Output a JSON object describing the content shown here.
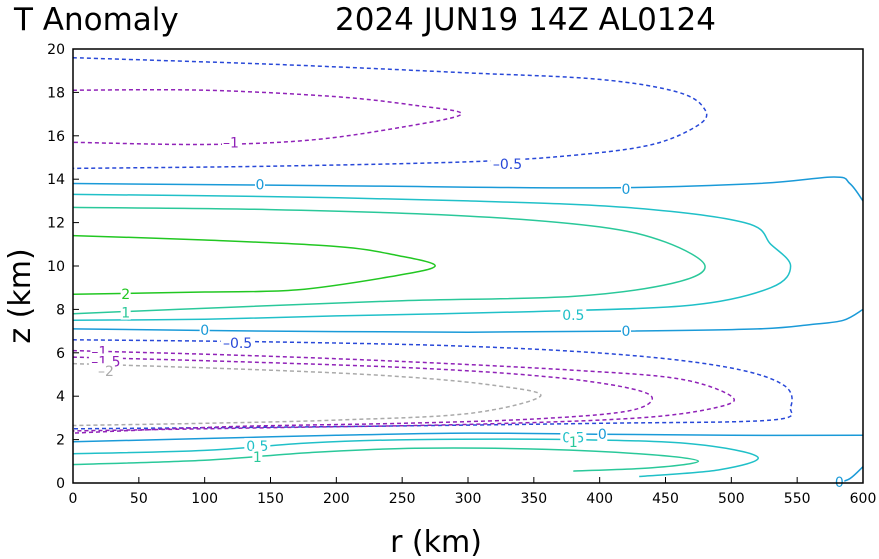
{
  "chart_data": {
    "type": "contour",
    "title": "T Anomaly",
    "subtitle": "2024  JUN19  14Z   AL0124",
    "xlabel": "r (km)",
    "ylabel": "z (km)",
    "xlim": [
      0,
      600
    ],
    "ylim": [
      0,
      20
    ],
    "xticks": [
      "0",
      "50",
      "100",
      "150",
      "200",
      "250",
      "300",
      "350",
      "400",
      "450",
      "500",
      "550",
      "600"
    ],
    "yticks": [
      "0",
      "2",
      "4",
      "6",
      "8",
      "10",
      "12",
      "14",
      "16",
      "18",
      "20"
    ],
    "grid": false,
    "colors": {
      "c2": "#22c722",
      "c1": "#2ac89a",
      "c05": "#20c0c8",
      "c0": "#1a9ad8",
      "cm05": "#2848d8",
      "cm1": "#9022b8",
      "cm15": "#aaaaaa"
    },
    "contours": [
      {
        "level": 2,
        "color": "c2",
        "dashed": false,
        "points": [
          [
            0,
            11.4
          ],
          [
            100,
            11.2
          ],
          [
            200,
            10.9
          ],
          [
            245,
            10.5
          ],
          [
            275,
            10.0
          ],
          [
            240,
            9.5
          ],
          [
            170,
            8.9
          ],
          [
            100,
            8.8
          ],
          [
            0,
            8.7
          ]
        ]
      },
      {
        "level": 1,
        "color": "c1",
        "dashed": false,
        "points": [
          [
            0,
            12.7
          ],
          [
            150,
            12.6
          ],
          [
            300,
            12.3
          ],
          [
            400,
            11.8
          ],
          [
            450,
            11.1
          ],
          [
            480,
            10.0
          ],
          [
            455,
            9.2
          ],
          [
            380,
            8.6
          ],
          [
            250,
            8.4
          ],
          [
            120,
            8.1
          ],
          [
            0,
            7.8
          ]
        ]
      },
      {
        "level": 0.5,
        "color": "c05",
        "dashed": false,
        "points": [
          [
            0,
            13.3
          ],
          [
            150,
            13.2
          ],
          [
            300,
            13.0
          ],
          [
            420,
            12.7
          ],
          [
            510,
            12.0
          ],
          [
            530,
            11.0
          ],
          [
            545,
            10.0
          ],
          [
            530,
            9.0
          ],
          [
            470,
            8.2
          ],
          [
            350,
            7.9
          ],
          [
            200,
            7.7
          ],
          [
            100,
            7.55
          ],
          [
            0,
            7.5
          ]
        ]
      },
      {
        "level": 0,
        "color": "c0",
        "dashed": false,
        "points": [
          [
            0,
            13.8
          ],
          [
            200,
            13.7
          ],
          [
            400,
            13.6
          ],
          [
            520,
            13.8
          ],
          [
            578,
            14.1
          ],
          [
            590,
            13.8
          ],
          [
            600,
            13.0
          ]
        ]
      },
      {
        "level": 0,
        "color": "c0",
        "dashed": false,
        "points": [
          [
            0,
            7.1
          ],
          [
            150,
            7.0
          ],
          [
            300,
            6.95
          ],
          [
            420,
            7.0
          ],
          [
            520,
            7.1
          ],
          [
            560,
            7.3
          ],
          [
            585,
            7.5
          ],
          [
            600,
            8.0
          ]
        ]
      },
      {
        "level": -0.5,
        "color": "cm05",
        "dashed": true,
        "points": [
          [
            0,
            19.6
          ],
          [
            150,
            19.3
          ],
          [
            300,
            18.9
          ],
          [
            400,
            18.6
          ],
          [
            460,
            18.0
          ],
          [
            480,
            17.2
          ],
          [
            475,
            16.5
          ],
          [
            440,
            15.6
          ],
          [
            380,
            15.1
          ],
          [
            300,
            14.8
          ],
          [
            150,
            14.6
          ],
          [
            0,
            14.5
          ]
        ]
      },
      {
        "level": -0.5,
        "color": "cm05",
        "dashed": true,
        "points": [
          [
            0,
            6.6
          ],
          [
            150,
            6.5
          ],
          [
            300,
            6.3
          ],
          [
            420,
            5.9
          ],
          [
            500,
            5.3
          ],
          [
            540,
            4.5
          ],
          [
            545,
            3.5
          ],
          [
            530,
            2.9
          ],
          [
            400,
            2.75
          ],
          [
            200,
            2.6
          ],
          [
            0,
            2.5
          ]
        ]
      },
      {
        "level": -1,
        "color": "cm1",
        "dashed": true,
        "points": [
          [
            0,
            18.1
          ],
          [
            100,
            18.1
          ],
          [
            200,
            17.8
          ],
          [
            260,
            17.4
          ],
          [
            295,
            17.0
          ],
          [
            250,
            16.4
          ],
          [
            180,
            15.8
          ],
          [
            100,
            15.6
          ],
          [
            0,
            15.7
          ]
        ]
      },
      {
        "level": -1,
        "color": "cm1",
        "dashed": true,
        "points": [
          [
            0,
            6.1
          ],
          [
            120,
            5.9
          ],
          [
            250,
            5.6
          ],
          [
            380,
            5.2
          ],
          [
            460,
            4.8
          ],
          [
            500,
            4.0
          ],
          [
            490,
            3.5
          ],
          [
            430,
            3.0
          ],
          [
            300,
            2.7
          ],
          [
            150,
            2.55
          ],
          [
            0,
            2.4
          ]
        ]
      },
      {
        "level": -1.5,
        "color": "cm1",
        "dashed": true,
        "points": [
          [
            0,
            5.8
          ],
          [
            120,
            5.6
          ],
          [
            260,
            5.3
          ],
          [
            360,
            4.9
          ],
          [
            420,
            4.4
          ],
          [
            440,
            3.9
          ],
          [
            420,
            3.3
          ],
          [
            350,
            2.95
          ],
          [
            250,
            2.75
          ],
          [
            120,
            2.6
          ],
          [
            0,
            2.3
          ]
        ]
      },
      {
        "level": -2,
        "color": "cm15",
        "dashed": true,
        "points": [
          [
            0,
            5.5
          ],
          [
            150,
            5.2
          ],
          [
            250,
            4.9
          ],
          [
            320,
            4.5
          ],
          [
            355,
            4.0
          ],
          [
            300,
            3.2
          ],
          [
            200,
            2.9
          ],
          [
            100,
            2.75
          ],
          [
            0,
            2.65
          ]
        ]
      },
      {
        "level": 0,
        "color": "c0",
        "dashed": false,
        "points": [
          [
            0,
            1.9
          ],
          [
            100,
            2.05
          ],
          [
            200,
            2.2
          ],
          [
            300,
            2.3
          ],
          [
            400,
            2.25
          ],
          [
            500,
            2.2
          ],
          [
            600,
            2.2
          ]
        ]
      },
      {
        "level": 0.5,
        "color": "c05",
        "dashed": false,
        "points": [
          [
            0,
            1.35
          ],
          [
            100,
            1.5
          ],
          [
            180,
            1.85
          ],
          [
            260,
            2.0
          ],
          [
            380,
            2.0
          ],
          [
            470,
            1.8
          ],
          [
            520,
            1.2
          ],
          [
            490,
            0.6
          ],
          [
            430,
            0.3
          ]
        ]
      },
      {
        "level": 1,
        "color": "c1",
        "dashed": false,
        "points": [
          [
            0,
            0.85
          ],
          [
            100,
            1.05
          ],
          [
            180,
            1.4
          ],
          [
            260,
            1.6
          ],
          [
            360,
            1.55
          ],
          [
            440,
            1.3
          ],
          [
            475,
            1.0
          ],
          [
            440,
            0.7
          ],
          [
            380,
            0.55
          ]
        ]
      },
      {
        "level": 0,
        "color": "c0",
        "dashed": false,
        "points": [
          [
            580,
            0.0
          ],
          [
            590,
            0.2
          ],
          [
            600,
            0.75
          ]
        ]
      }
    ],
    "labels": [
      {
        "text": "2",
        "r": 40,
        "z": 8.7,
        "color": "c2"
      },
      {
        "text": "1",
        "r": 40,
        "z": 7.85,
        "color": "c1"
      },
      {
        "text": "0.5",
        "r": 380,
        "z": 7.75,
        "color": "c05"
      },
      {
        "text": "0",
        "r": 142,
        "z": 13.75,
        "color": "c0"
      },
      {
        "text": "0",
        "r": 420,
        "z": 13.55,
        "color": "c0"
      },
      {
        "text": "0",
        "r": 100,
        "z": 7.05,
        "color": "c0"
      },
      {
        "text": "0",
        "r": 420,
        "z": 7.0,
        "color": "c0"
      },
      {
        "text": "–0.5",
        "r": 330,
        "z": 14.7,
        "color": "cm05"
      },
      {
        "text": "–0.5",
        "r": 125,
        "z": 6.45,
        "color": "cm05"
      },
      {
        "text": "–1",
        "r": 120,
        "z": 15.7,
        "color": "cm1"
      },
      {
        "text": "–1",
        "r": 20,
        "z": 6.05,
        "color": "cm1"
      },
      {
        "text": "–1.5",
        "r": 25,
        "z": 5.6,
        "color": "cm1"
      },
      {
        "text": "–2",
        "r": 25,
        "z": 5.15,
        "color": "cm15"
      },
      {
        "text": "0.5",
        "r": 140,
        "z": 1.7,
        "color": "c05"
      },
      {
        "text": "1",
        "r": 140,
        "z": 1.2,
        "color": "c1"
      },
      {
        "text": "0.5",
        "r": 380,
        "z": 2.1,
        "color": "c05"
      },
      {
        "text": "0",
        "r": 402,
        "z": 2.25,
        "color": "c0"
      },
      {
        "text": "1",
        "r": 380,
        "z": 1.9,
        "color": "c1"
      },
      {
        "text": "0",
        "r": 582,
        "z": 0.05,
        "color": "c0"
      }
    ]
  }
}
